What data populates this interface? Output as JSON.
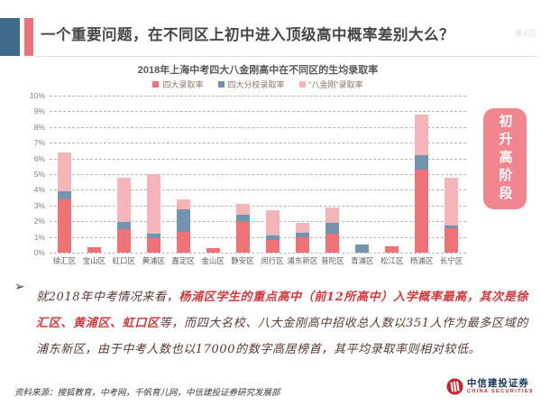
{
  "header": {
    "title": "一个重要问题，在不同区上初中进入顶级高中概率差别大么？",
    "page_note": "第4页"
  },
  "chart_data": {
    "type": "bar",
    "stacked": true,
    "title": "2018年上海中考四大八金刚高中在不同区的生均录取率",
    "categories": [
      "徐汇区",
      "宝山区",
      "虹口区",
      "黄浦区",
      "嘉定区",
      "金山区",
      "静安区",
      "闵行区",
      "浦东新区",
      "普陀区",
      "青浦区",
      "松江区",
      "杨浦区",
      "长宁区"
    ],
    "series": [
      {
        "name": "四大录取率",
        "color": "#ee7276",
        "values": [
          3.4,
          0.35,
          1.5,
          0.9,
          1.35,
          0.3,
          2.0,
          0.8,
          0.95,
          1.2,
          0,
          0.4,
          5.3,
          1.55
        ]
      },
      {
        "name": "四大分校录取率",
        "color": "#7294ae",
        "values": [
          0.5,
          0,
          0.45,
          0.3,
          1.4,
          0,
          0.4,
          0.3,
          0.3,
          0.7,
          0.5,
          0,
          0.9,
          0.2
        ]
      },
      {
        "name": "“八金刚”录取率",
        "color": "#f5b4b7",
        "values": [
          2.5,
          0,
          2.85,
          3.8,
          0.65,
          0,
          0.7,
          1.6,
          0.65,
          1.0,
          0,
          0,
          2.6,
          3.05
        ]
      }
    ],
    "ylim": [
      0,
      10
    ],
    "ytick_step": 1,
    "ytick_suffix": "%",
    "grid": "horizontal-dashed",
    "legend_position": "top-center"
  },
  "badge": {
    "text": "初升高阶段",
    "color": "#f2868f"
  },
  "commentary": {
    "bullet": "➢",
    "part1": "就2018年中考情况来看，",
    "highlight": "杨浦区学生的重点高中（前12所高中）入学概率最高，其次是徐汇区、黄浦区、虹口区",
    "part2": "等，而四大名校、八大金刚高中招收总人数以351人作为最多区域的浦东新区，由于中考人数也以17000的数字高居榜首，其平均录取率则相对较低。"
  },
  "footer": {
    "source": "资料来源：搜狐教育，中考网，千帆育儿网，中信建投证券研究发展部",
    "logo_cn": "中信建投证券",
    "logo_en": "CHINA SECURITIES"
  },
  "colors": {
    "header_accent_blue": "#3e6b8c",
    "header_accent_red": "#ee727a",
    "highlight_text_red": "#cf3a3c",
    "body_text_maroon": "#5a3835"
  }
}
